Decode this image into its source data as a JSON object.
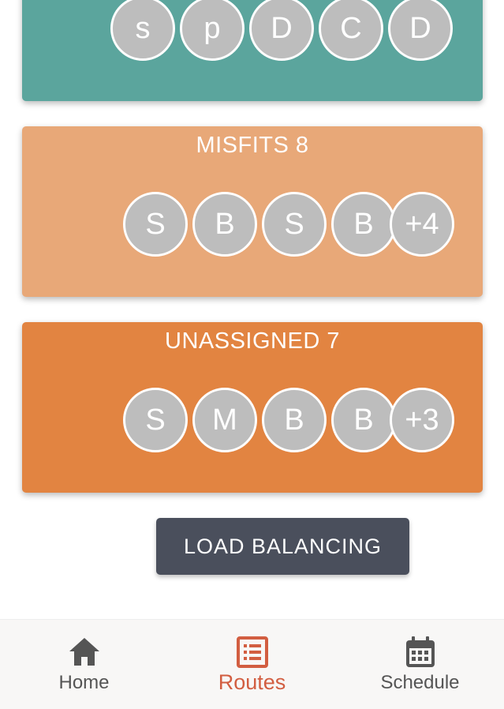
{
  "colors": {
    "teal": "#5ba59d",
    "peach": "#e8a878",
    "orange": "#e28441",
    "avatar": "#bdbdbd",
    "button": "#4a4f5c",
    "active_nav": "#d25e41",
    "inactive_nav": "#555555"
  },
  "cards": {
    "top": {
      "members": [
        "s",
        "p",
        "D",
        "C",
        "D"
      ]
    },
    "misfits": {
      "title": "MISFITS 8",
      "members": [
        "S",
        "B",
        "S",
        "B"
      ],
      "overflow": "+4"
    },
    "unassigned": {
      "title": "UNASSIGNED 7",
      "members": [
        "S",
        "M",
        "B",
        "B"
      ],
      "overflow": "+3"
    }
  },
  "load_balancing_label": "LOAD BALANCING",
  "nav": {
    "items": [
      {
        "label": "Home",
        "icon": "home-icon",
        "active": false
      },
      {
        "label": "Routes",
        "icon": "routes-list-icon",
        "active": true
      },
      {
        "label": "Schedule",
        "icon": "calendar-icon",
        "active": false
      }
    ]
  }
}
